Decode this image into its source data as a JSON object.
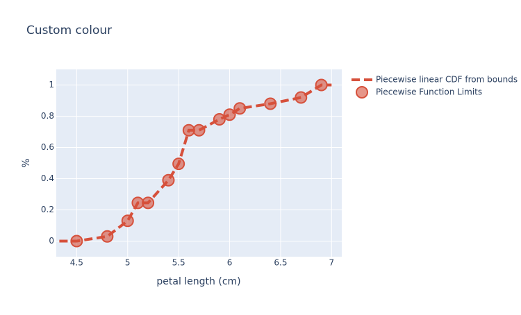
{
  "chart_data": {
    "type": "line",
    "title": "Custom colour",
    "xlabel": "petal length (cm)",
    "ylabel": "%",
    "xlim": [
      4.3,
      7.1
    ],
    "ylim": [
      -0.1,
      1.1
    ],
    "xticks": [
      4.5,
      5,
      5.5,
      6,
      6.5,
      7
    ],
    "yticks": [
      0,
      0.2,
      0.4,
      0.6,
      0.8,
      1
    ],
    "grid": true,
    "legend": "right",
    "series": [
      {
        "name": "Piecewise linear CDF from bounds",
        "mode": "lines",
        "color": "#d6503b",
        "x": [
          4.33,
          4.5,
          4.8,
          5.0,
          5.1,
          5.2,
          5.4,
          5.5,
          5.6,
          5.7,
          5.9,
          6.0,
          6.1,
          6.4,
          6.7,
          6.9,
          7.0
        ],
        "values": [
          0,
          0,
          0.03,
          0.13,
          0.245,
          0.245,
          0.39,
          0.495,
          0.71,
          0.71,
          0.78,
          0.81,
          0.85,
          0.88,
          0.92,
          1.0,
          1.0
        ]
      },
      {
        "name": "Piecewise Function Limits",
        "mode": "markers",
        "color": "#d6503b",
        "x": [
          4.5,
          4.8,
          5.0,
          5.1,
          5.2,
          5.4,
          5.5,
          5.6,
          5.7,
          5.9,
          6.0,
          6.1,
          6.4,
          6.7,
          6.9
        ],
        "values": [
          0,
          0.03,
          0.13,
          0.245,
          0.245,
          0.39,
          0.495,
          0.71,
          0.71,
          0.78,
          0.81,
          0.85,
          0.88,
          0.92,
          1.0
        ]
      }
    ]
  }
}
